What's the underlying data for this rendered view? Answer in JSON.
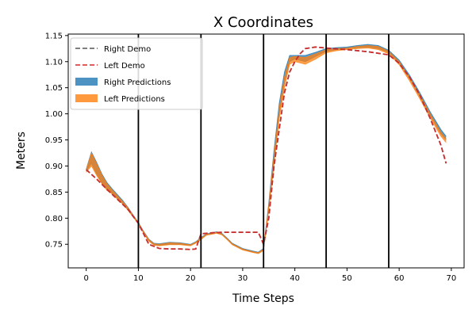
{
  "chart_data": {
    "type": "line",
    "title": "X Coordinates",
    "xlabel": "Time Steps",
    "ylabel": "Meters",
    "xlim": [
      -3.45,
      72.45
    ],
    "ylim": [
      0.7048,
      1.1528
    ],
    "x_ticks": [
      0,
      10,
      20,
      30,
      40,
      50,
      60,
      70
    ],
    "y_ticks": [
      0.75,
      0.8,
      0.85,
      0.9,
      0.95,
      1.0,
      1.05,
      1.1,
      1.15
    ],
    "y_tick_labels": [
      "0.75",
      "0.80",
      "0.85",
      "0.90",
      "0.95",
      "1.00",
      "1.05",
      "1.10",
      "1.15"
    ],
    "legend_position": "top-left",
    "segment_boundaries": [
      10,
      22,
      34,
      46,
      58
    ],
    "series": [
      {
        "name": "Right Demo",
        "style": "dashed",
        "color": "#555555",
        "x": [
          0,
          2,
          4,
          6,
          8,
          10,
          12,
          14,
          16,
          18,
          20,
          21,
          22,
          24,
          26,
          28,
          30,
          32,
          33,
          34,
          35,
          36,
          37,
          38,
          39,
          40,
          41,
          42,
          44,
          46,
          50,
          54,
          58,
          60,
          62,
          64,
          66,
          68,
          69
        ],
        "y": [
          0.893,
          0.875,
          0.855,
          0.836,
          0.817,
          0.79,
          0.75,
          0.742,
          0.741,
          0.741,
          0.74,
          0.741,
          0.77,
          0.772,
          0.773,
          0.773,
          0.773,
          0.773,
          0.773,
          0.75,
          0.8,
          0.9,
          0.97,
          1.04,
          1.08,
          1.1,
          1.115,
          1.125,
          1.128,
          1.126,
          1.123,
          1.119,
          1.113,
          1.097,
          1.07,
          1.035,
          0.99,
          0.94,
          0.905
        ]
      },
      {
        "name": "Left Demo",
        "style": "dashed",
        "color": "#d62728",
        "x": [
          0,
          2,
          4,
          6,
          8,
          10,
          12,
          14,
          16,
          18,
          20,
          21,
          22,
          24,
          26,
          28,
          30,
          32,
          33,
          34,
          35,
          36,
          37,
          38,
          39,
          40,
          41,
          42,
          44,
          46,
          50,
          54,
          58,
          60,
          62,
          64,
          66,
          68,
          69
        ],
        "y": [
          0.893,
          0.875,
          0.855,
          0.836,
          0.817,
          0.79,
          0.75,
          0.742,
          0.741,
          0.741,
          0.74,
          0.741,
          0.77,
          0.772,
          0.773,
          0.773,
          0.773,
          0.773,
          0.773,
          0.75,
          0.8,
          0.9,
          0.97,
          1.04,
          1.08,
          1.1,
          1.115,
          1.125,
          1.128,
          1.126,
          1.123,
          1.119,
          1.113,
          1.097,
          1.07,
          1.035,
          0.99,
          0.94,
          0.905
        ]
      },
      {
        "name": "Right Predictions",
        "style": "band",
        "color": "#1f77b4",
        "x": [
          0,
          1,
          2,
          3,
          4,
          5,
          6,
          7,
          8,
          9,
          10,
          11,
          12,
          13,
          14,
          16,
          18,
          20,
          21,
          22,
          23,
          24,
          25,
          26,
          27,
          28,
          30,
          32,
          33,
          34,
          35,
          36,
          37,
          38,
          39,
          40,
          42,
          44,
          46,
          48,
          50,
          52,
          54,
          56,
          58,
          60,
          62,
          64,
          66,
          68,
          69
        ],
        "y_low": [
          0.89,
          0.905,
          0.885,
          0.868,
          0.856,
          0.848,
          0.838,
          0.828,
          0.817,
          0.803,
          0.79,
          0.772,
          0.757,
          0.749,
          0.748,
          0.75,
          0.75,
          0.748,
          0.753,
          0.76,
          0.768,
          0.77,
          0.772,
          0.769,
          0.76,
          0.75,
          0.74,
          0.735,
          0.733,
          0.74,
          0.82,
          0.91,
          1.0,
          1.06,
          1.1,
          1.105,
          1.1,
          1.11,
          1.12,
          1.123,
          1.125,
          1.127,
          1.128,
          1.125,
          1.118,
          1.098,
          1.068,
          1.033,
          0.996,
          0.962,
          0.95
        ],
        "y_high": [
          0.894,
          0.927,
          0.907,
          0.885,
          0.868,
          0.856,
          0.845,
          0.834,
          0.821,
          0.806,
          0.792,
          0.775,
          0.76,
          0.752,
          0.751,
          0.754,
          0.753,
          0.75,
          0.755,
          0.763,
          0.77,
          0.772,
          0.774,
          0.771,
          0.762,
          0.752,
          0.742,
          0.737,
          0.735,
          0.742,
          0.83,
          0.93,
          1.02,
          1.08,
          1.112,
          1.112,
          1.112,
          1.118,
          1.125,
          1.127,
          1.128,
          1.131,
          1.133,
          1.131,
          1.122,
          1.103,
          1.074,
          1.04,
          1.003,
          0.97,
          0.957
        ]
      },
      {
        "name": "Left Predictions",
        "style": "band",
        "color": "#ff7f0e",
        "x": [
          0,
          1,
          2,
          3,
          4,
          5,
          6,
          7,
          8,
          9,
          10,
          11,
          12,
          13,
          14,
          16,
          18,
          20,
          21,
          22,
          23,
          24,
          25,
          26,
          27,
          28,
          30,
          32,
          33,
          34,
          35,
          36,
          37,
          38,
          39,
          40,
          42,
          44,
          46,
          48,
          50,
          52,
          54,
          56,
          58,
          60,
          62,
          64,
          66,
          68,
          69
        ],
        "y_low": [
          0.888,
          0.9,
          0.882,
          0.866,
          0.853,
          0.846,
          0.836,
          0.827,
          0.815,
          0.802,
          0.789,
          0.771,
          0.756,
          0.748,
          0.747,
          0.749,
          0.749,
          0.747,
          0.752,
          0.759,
          0.767,
          0.769,
          0.771,
          0.768,
          0.759,
          0.749,
          0.739,
          0.734,
          0.732,
          0.738,
          0.815,
          0.9,
          0.99,
          1.05,
          1.095,
          1.1,
          1.095,
          1.105,
          1.117,
          1.121,
          1.123,
          1.125,
          1.126,
          1.123,
          1.115,
          1.094,
          1.063,
          1.028,
          0.991,
          0.957,
          0.945
        ],
        "y_high": [
          0.893,
          0.925,
          0.905,
          0.883,
          0.866,
          0.854,
          0.843,
          0.832,
          0.82,
          0.805,
          0.791,
          0.774,
          0.759,
          0.751,
          0.75,
          0.753,
          0.752,
          0.749,
          0.754,
          0.762,
          0.769,
          0.771,
          0.773,
          0.77,
          0.761,
          0.751,
          0.741,
          0.736,
          0.734,
          0.741,
          0.825,
          0.92,
          1.01,
          1.07,
          1.108,
          1.11,
          1.108,
          1.115,
          1.123,
          1.125,
          1.126,
          1.129,
          1.131,
          1.129,
          1.12,
          1.1,
          1.07,
          1.036,
          0.999,
          0.965,
          0.952
        ]
      }
    ]
  }
}
